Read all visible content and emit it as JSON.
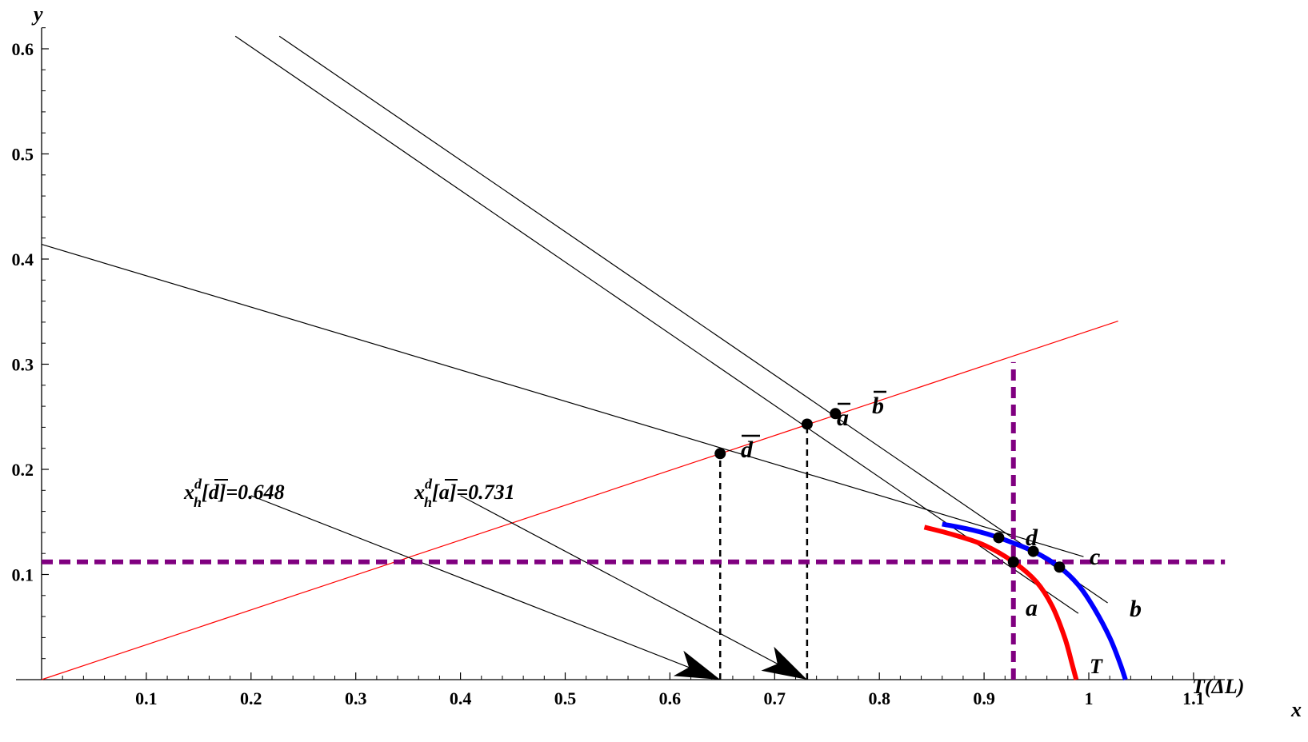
{
  "chart_data": {
    "type": "diagram",
    "xlabel": "x",
    "ylabel": "y",
    "xlim": [
      0,
      1.13
    ],
    "ylim": [
      0,
      0.62
    ],
    "xticks": [
      {
        "value": 0.1,
        "label": "0.1"
      },
      {
        "value": 0.2,
        "label": "0.2"
      },
      {
        "value": 0.3,
        "label": "0.3"
      },
      {
        "value": 0.4,
        "label": "0.4"
      },
      {
        "value": 0.5,
        "label": "0.5"
      },
      {
        "value": 0.6,
        "label": "0.6"
      },
      {
        "value": 0.7,
        "label": "0.7"
      },
      {
        "value": 0.8,
        "label": "0.8"
      },
      {
        "value": 0.9,
        "label": "0.9"
      },
      {
        "value": 1.0,
        "label": "1"
      },
      {
        "value": 1.1,
        "label": "1.1"
      }
    ],
    "yticks": [
      {
        "value": 0.1,
        "label": "0.1"
      },
      {
        "value": 0.2,
        "label": "0.2"
      },
      {
        "value": 0.3,
        "label": "0.3"
      },
      {
        "value": 0.4,
        "label": "0.4"
      },
      {
        "value": 0.5,
        "label": "0.5"
      },
      {
        "value": 0.6,
        "label": "0.6"
      }
    ],
    "lines": [
      {
        "id": "ray",
        "color": "#ff0000",
        "width": 1.2,
        "points": [
          [
            0,
            0
          ],
          [
            1.028,
            0.341
          ]
        ]
      },
      {
        "id": "tangent-d",
        "color": "#000000",
        "width": 1.2,
        "points": [
          [
            0,
            0.414
          ],
          [
            0.995,
            0.117
          ]
        ]
      },
      {
        "id": "tangent-a",
        "color": "#000000",
        "width": 1.2,
        "points": [
          [
            0.185,
            0.612
          ],
          [
            0.99,
            0.063
          ]
        ]
      },
      {
        "id": "tangent-b",
        "color": "#000000",
        "width": 1.2,
        "points": [
          [
            0.227,
            0.612
          ],
          [
            1.018,
            0.073
          ]
        ]
      },
      {
        "id": "arrow-line-d",
        "color": "#000000",
        "width": 1.2,
        "points": [
          [
            0.2,
            0.175
          ],
          [
            0.648,
            0.0
          ]
        ]
      },
      {
        "id": "arrow-line-a",
        "color": "#000000",
        "width": 1.2,
        "points": [
          [
            0.4,
            0.175
          ],
          [
            0.731,
            0.0
          ]
        ]
      }
    ],
    "dashed_lines": [
      {
        "id": "drop-d",
        "color": "#000000",
        "width": 2.5,
        "dash": "8,6",
        "points": [
          [
            0.648,
            0.0
          ],
          [
            0.648,
            0.215
          ]
        ]
      },
      {
        "id": "drop-a",
        "color": "#000000",
        "width": 2.5,
        "dash": "8,6",
        "points": [
          [
            0.731,
            0.0
          ],
          [
            0.731,
            0.243
          ]
        ]
      },
      {
        "id": "horizontal-a",
        "color": "#800080",
        "width": 6,
        "dash": "14,8",
        "points": [
          [
            0.0,
            0.112
          ],
          [
            1.13,
            0.112
          ]
        ]
      },
      {
        "id": "vertical-a",
        "color": "#800080",
        "width": 6,
        "dash": "14,8",
        "points": [
          [
            0.928,
            0.0
          ],
          [
            0.928,
            0.302
          ]
        ]
      }
    ],
    "curves": [
      {
        "id": "curve-T",
        "label": "T",
        "color": "#ff0000",
        "width": 6,
        "points": [
          [
            0.843,
            0.145
          ],
          [
            0.87,
            0.138
          ],
          [
            0.9,
            0.128
          ],
          [
            0.928,
            0.112
          ],
          [
            0.95,
            0.093
          ],
          [
            0.965,
            0.07
          ],
          [
            0.977,
            0.04
          ],
          [
            0.984,
            0.015
          ],
          [
            0.988,
            0.0
          ]
        ]
      },
      {
        "id": "curve-T-deltaL",
        "label": "T(ΔL)",
        "color": "#0000ff",
        "width": 6,
        "points": [
          [
            0.86,
            0.148
          ],
          [
            0.89,
            0.142
          ],
          [
            0.914,
            0.135
          ],
          [
            0.947,
            0.122
          ],
          [
            0.972,
            0.107
          ],
          [
            0.99,
            0.09
          ],
          [
            1.005,
            0.068
          ],
          [
            1.02,
            0.04
          ],
          [
            1.03,
            0.015
          ],
          [
            1.035,
            0.0
          ]
        ]
      }
    ],
    "points": [
      {
        "id": "d-bar",
        "x": 0.648,
        "y": 0.215,
        "label": "d",
        "overbar": true
      },
      {
        "id": "a-bar",
        "x": 0.731,
        "y": 0.243,
        "label": "a",
        "overbar": true
      },
      {
        "id": "b-bar",
        "x": 0.758,
        "y": 0.253,
        "label": "b",
        "overbar": true
      },
      {
        "id": "d",
        "x": 0.914,
        "y": 0.135,
        "label": "d",
        "overbar": false
      },
      {
        "id": "c",
        "x": 0.947,
        "y": 0.122,
        "label": "c",
        "overbar": false
      },
      {
        "id": "b",
        "x": 0.972,
        "y": 0.107,
        "label": "b",
        "overbar": false
      },
      {
        "id": "a",
        "x": 0.928,
        "y": 0.112,
        "label": "a",
        "overbar": false
      }
    ],
    "annotations": [
      {
        "id": "xh-d",
        "base": "x",
        "sup": "d",
        "sub": "h",
        "arg": "d",
        "overbar_arg": true,
        "value": "=0.648"
      },
      {
        "id": "xh-a",
        "base": "x",
        "sup": "d",
        "sub": "h",
        "arg": "a",
        "overbar_arg": true,
        "value": "=0.731"
      }
    ]
  }
}
